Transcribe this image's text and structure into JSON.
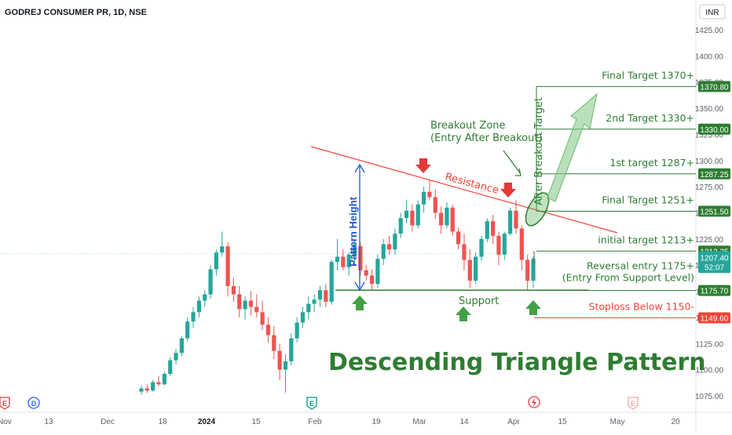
{
  "header": {
    "symbol_title": "GODREJ CONSUMER PR, 1D, NSE",
    "currency": "INR"
  },
  "chart_data": {
    "type": "candlestick",
    "title": "Descending Triangle Pattern",
    "y_axis": {
      "ticks": [
        "1425.00",
        "1400.00",
        "1375.00",
        "1350.00",
        "1325.00",
        "1300.00",
        "1275.00",
        "1250.00",
        "1225.00",
        "1200.00",
        "1175.00",
        "1150.00",
        "1125.00",
        "1100.00",
        "1075.00"
      ],
      "range": [
        1065,
        1440
      ]
    },
    "x_axis": {
      "ticks": [
        "Nov",
        "13",
        "Dec",
        "18",
        "2024",
        "15",
        "Feb",
        "19",
        "Mar",
        "14",
        "Apr",
        "15",
        "May",
        "20"
      ]
    },
    "candles": [
      [
        1079,
        1085,
        1076,
        1082
      ],
      [
        1082,
        1086,
        1078,
        1080
      ],
      [
        1080,
        1090,
        1079,
        1088
      ],
      [
        1088,
        1094,
        1084,
        1086
      ],
      [
        1086,
        1098,
        1085,
        1096
      ],
      [
        1096,
        1112,
        1094,
        1109
      ],
      [
        1109,
        1120,
        1105,
        1116
      ],
      [
        1116,
        1132,
        1113,
        1130
      ],
      [
        1130,
        1150,
        1127,
        1146
      ],
      [
        1146,
        1160,
        1140,
        1155
      ],
      [
        1155,
        1170,
        1150,
        1166
      ],
      [
        1166,
        1176,
        1160,
        1172
      ],
      [
        1172,
        1200,
        1168,
        1196
      ],
      [
        1196,
        1215,
        1190,
        1212
      ],
      [
        1212,
        1232,
        1208,
        1218
      ],
      [
        1218,
        1222,
        1170,
        1180
      ],
      [
        1180,
        1188,
        1165,
        1172
      ],
      [
        1172,
        1180,
        1150,
        1158
      ],
      [
        1158,
        1170,
        1148,
        1166
      ],
      [
        1166,
        1175,
        1152,
        1160
      ],
      [
        1160,
        1172,
        1150,
        1155
      ],
      [
        1155,
        1166,
        1138,
        1143
      ],
      [
        1143,
        1150,
        1126,
        1133
      ],
      [
        1133,
        1142,
        1110,
        1118
      ],
      [
        1118,
        1125,
        1090,
        1100
      ],
      [
        1100,
        1115,
        1078,
        1108
      ],
      [
        1108,
        1135,
        1104,
        1130
      ],
      [
        1130,
        1150,
        1126,
        1145
      ],
      [
        1145,
        1160,
        1140,
        1155
      ],
      [
        1155,
        1170,
        1148,
        1163
      ],
      [
        1163,
        1172,
        1155,
        1167
      ],
      [
        1167,
        1180,
        1160,
        1176
      ],
      [
        1176,
        1182,
        1160,
        1165
      ],
      [
        1165,
        1205,
        1162,
        1203
      ],
      [
        1203,
        1225,
        1195,
        1208
      ],
      [
        1208,
        1215,
        1195,
        1198
      ],
      [
        1198,
        1212,
        1190,
        1210
      ],
      [
        1210,
        1225,
        1200,
        1218
      ],
      [
        1218,
        1222,
        1190,
        1195
      ],
      [
        1195,
        1200,
        1185,
        1190
      ],
      [
        1190,
        1196,
        1176,
        1182
      ],
      [
        1182,
        1210,
        1178,
        1206
      ],
      [
        1206,
        1225,
        1200,
        1220
      ],
      [
        1220,
        1228,
        1210,
        1215
      ],
      [
        1215,
        1235,
        1210,
        1230
      ],
      [
        1230,
        1250,
        1226,
        1245
      ],
      [
        1245,
        1262,
        1240,
        1252
      ],
      [
        1252,
        1258,
        1232,
        1238
      ],
      [
        1238,
        1262,
        1235,
        1258
      ],
      [
        1258,
        1275,
        1250,
        1270
      ],
      [
        1270,
        1282,
        1262,
        1265
      ],
      [
        1265,
        1272,
        1244,
        1250
      ],
      [
        1250,
        1256,
        1230,
        1238
      ],
      [
        1238,
        1260,
        1235,
        1255
      ],
      [
        1255,
        1258,
        1228,
        1232
      ],
      [
        1232,
        1236,
        1215,
        1220
      ],
      [
        1220,
        1230,
        1195,
        1205
      ],
      [
        1205,
        1215,
        1178,
        1185
      ],
      [
        1185,
        1212,
        1182,
        1208
      ],
      [
        1208,
        1228,
        1204,
        1225
      ],
      [
        1225,
        1245,
        1222,
        1242
      ],
      [
        1242,
        1248,
        1220,
        1228
      ],
      [
        1228,
        1232,
        1200,
        1210
      ],
      [
        1210,
        1232,
        1205,
        1230
      ],
      [
        1230,
        1255,
        1228,
        1252
      ],
      [
        1252,
        1262,
        1230,
        1235
      ],
      [
        1235,
        1238,
        1195,
        1205
      ],
      [
        1205,
        1210,
        1176,
        1185
      ],
      [
        1185,
        1208,
        1178,
        1206
      ]
    ],
    "lines": [
      {
        "name": "Resistance",
        "from": [
          0,
          1313
        ],
        "to": [
          1,
          1228
        ],
        "color": "#f44336"
      },
      {
        "name": "Support",
        "value": 1176,
        "color": "#2e7d32"
      }
    ],
    "levels": [
      {
        "label": "Final Target 1370+",
        "badge": "1370.80",
        "value": 1370.8,
        "color": "#2e7d32"
      },
      {
        "label": "2nd Target 1330+",
        "badge": "1330.00",
        "value": 1330,
        "color": "#2e7d32"
      },
      {
        "label": "1st target 1287+",
        "badge": "1287.25",
        "value": 1287.25,
        "color": "#2e7d32"
      },
      {
        "label": "Final Target 1251+",
        "badge": "1251.50",
        "value": 1251.5,
        "color": "#2e7d32"
      },
      {
        "label": "initial target 1213+",
        "badge": "1213.35",
        "value": 1213.35,
        "color": "#2e7d32"
      },
      {
        "label": "Reversal entry 1175+",
        "label2": "(Entry From Support Level)",
        "badge": "1175.70",
        "value": 1175.7,
        "color": "#2e7d32"
      },
      {
        "label": "Stoploss Below 1150-",
        "badge": "1149.60",
        "value": 1149.6,
        "color": "#f44336"
      }
    ],
    "last_price": {
      "badge": "1207.40",
      "countdown": "52:07",
      "value": 1207.4,
      "color": "#26a69a"
    },
    "annotations": {
      "resistance": "Resistance",
      "support": "Support",
      "pattern_height": "Pattern Height",
      "breakout_zone": "Breakout Zone",
      "breakout_zone_sub": "(Entry After Breakout)",
      "after_breakout_target": "After Breakout Target"
    },
    "event_markers": [
      "E",
      "D",
      "E",
      "E"
    ],
    "colors": {
      "up": "#26a69a",
      "down": "#ef5350",
      "target": "#2e7d32",
      "stop": "#f44336"
    }
  }
}
